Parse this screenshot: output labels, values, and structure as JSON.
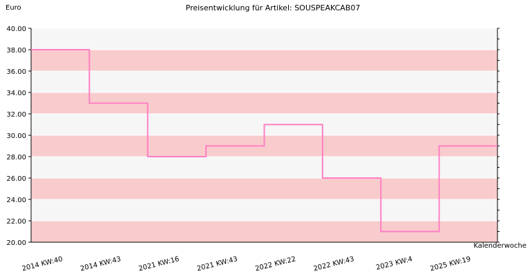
{
  "chart_data": {
    "type": "line",
    "title": "Preisentwicklung für Artikel: SOUSPEAKCAB07",
    "ylabel": "Euro",
    "xlabel": "Kalenderwoche",
    "ylim": [
      20,
      40
    ],
    "y_ticks": [
      "20.00",
      "22.00",
      "24.00",
      "26.00",
      "28.00",
      "30.00",
      "32.00",
      "34.00",
      "36.00",
      "38.00",
      "40.00"
    ],
    "categories": [
      "2014 KW:40",
      "2014 KW:43",
      "2021 KW:16",
      "2021 KW:43",
      "2022 KW:22",
      "2022 KW:43",
      "2023 KW:4",
      "2025 KW:19"
    ],
    "series": [
      {
        "values": [
          38,
          33,
          28,
          29,
          31,
          26,
          21,
          29
        ]
      }
    ],
    "step": true,
    "grid": true,
    "colors": {
      "line": "#ff7fc4",
      "band_a": "#f8cccc",
      "band_b": "#f6f6f6"
    }
  }
}
